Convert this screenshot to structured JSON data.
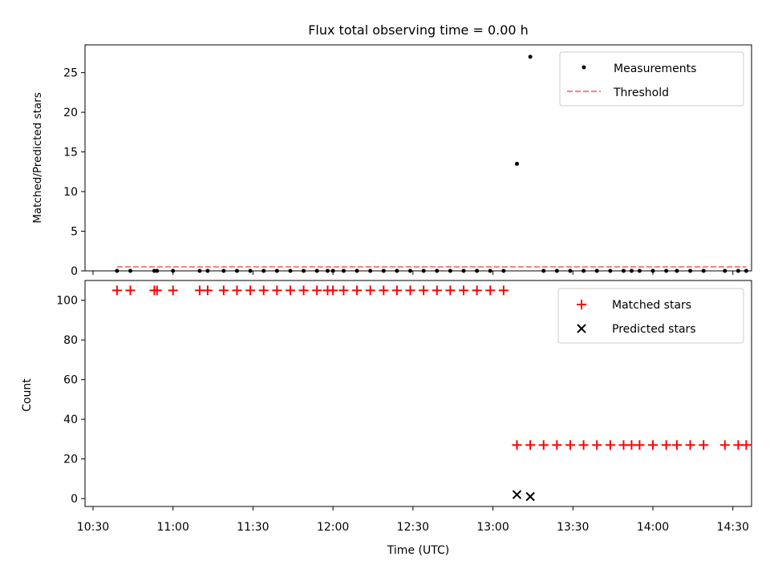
{
  "chart_data": [
    {
      "type": "scatter",
      "title": "Flux total observing time = 0.00 h",
      "ylabel": "Matched/Predicted stars",
      "xlabel": "",
      "xlim": [
        "10:27",
        "14:37"
      ],
      "ylim": [
        0,
        28.5
      ],
      "yticks": [
        0,
        5,
        10,
        15,
        20,
        25
      ],
      "grid": false,
      "legend_position": "top-right",
      "series": [
        {
          "name": "Measurements",
          "kind": "scatter",
          "marker": "dot",
          "color": "#000000",
          "points": [
            [
              "10:39",
              0
            ],
            [
              "10:44",
              0
            ],
            [
              "10:53",
              0
            ],
            [
              "10:54",
              0
            ],
            [
              "11:00",
              0
            ],
            [
              "11:10",
              0
            ],
            [
              "11:13",
              0
            ],
            [
              "11:19",
              0
            ],
            [
              "11:24",
              0
            ],
            [
              "11:29",
              0
            ],
            [
              "11:34",
              0
            ],
            [
              "11:39",
              0
            ],
            [
              "11:44",
              0
            ],
            [
              "11:49",
              0
            ],
            [
              "11:54",
              0
            ],
            [
              "11:58",
              0
            ],
            [
              "12:00",
              0
            ],
            [
              "12:04",
              0
            ],
            [
              "12:09",
              0
            ],
            [
              "12:14",
              0
            ],
            [
              "12:19",
              0
            ],
            [
              "12:24",
              0
            ],
            [
              "12:29",
              0
            ],
            [
              "12:34",
              0
            ],
            [
              "12:39",
              0
            ],
            [
              "12:44",
              0
            ],
            [
              "12:49",
              0
            ],
            [
              "12:54",
              0
            ],
            [
              "12:59",
              0
            ],
            [
              "13:04",
              0
            ],
            [
              "13:09",
              13.5
            ],
            [
              "13:14",
              27
            ],
            [
              "13:19",
              0
            ],
            [
              "13:24",
              0
            ],
            [
              "13:29",
              0
            ],
            [
              "13:34",
              0
            ],
            [
              "13:39",
              0
            ],
            [
              "13:44",
              0
            ],
            [
              "13:49",
              0
            ],
            [
              "13:52",
              0
            ],
            [
              "13:55",
              0
            ],
            [
              "14:00",
              0
            ],
            [
              "14:05",
              0
            ],
            [
              "14:09",
              0
            ],
            [
              "14:14",
              0
            ],
            [
              "14:19",
              0
            ],
            [
              "14:27",
              0
            ],
            [
              "14:32",
              0
            ],
            [
              "14:35",
              0
            ]
          ]
        },
        {
          "name": "Threshold",
          "kind": "line",
          "style": "dashed",
          "color": "#ff7f7f",
          "points": [
            [
              "10:39",
              0.5
            ],
            [
              "14:35",
              0.5
            ]
          ]
        }
      ]
    },
    {
      "type": "scatter",
      "title": "",
      "ylabel": "Count",
      "xlabel": "Time (UTC)",
      "xlim": [
        "10:27",
        "14:37"
      ],
      "ylim": [
        -4,
        110
      ],
      "yticks": [
        0,
        20,
        40,
        60,
        80,
        100
      ],
      "xticks": [
        "10:30",
        "11:00",
        "11:30",
        "12:00",
        "12:30",
        "13:00",
        "13:30",
        "14:00",
        "14:30"
      ],
      "grid": false,
      "legend_position": "top-right",
      "series": [
        {
          "name": "Matched stars",
          "kind": "scatter",
          "marker": "plus",
          "color": "#ff0000",
          "points": [
            [
              "10:39",
              105
            ],
            [
              "10:44",
              105
            ],
            [
              "10:53",
              105
            ],
            [
              "10:54",
              105
            ],
            [
              "11:00",
              105
            ],
            [
              "11:10",
              105
            ],
            [
              "11:13",
              105
            ],
            [
              "11:19",
              105
            ],
            [
              "11:24",
              105
            ],
            [
              "11:29",
              105
            ],
            [
              "11:34",
              105
            ],
            [
              "11:39",
              105
            ],
            [
              "11:44",
              105
            ],
            [
              "11:49",
              105
            ],
            [
              "11:54",
              105
            ],
            [
              "11:58",
              105
            ],
            [
              "12:00",
              105
            ],
            [
              "12:04",
              105
            ],
            [
              "12:09",
              105
            ],
            [
              "12:14",
              105
            ],
            [
              "12:19",
              105
            ],
            [
              "12:24",
              105
            ],
            [
              "12:29",
              105
            ],
            [
              "12:34",
              105
            ],
            [
              "12:39",
              105
            ],
            [
              "12:44",
              105
            ],
            [
              "12:49",
              105
            ],
            [
              "12:54",
              105
            ],
            [
              "12:59",
              105
            ],
            [
              "13:04",
              105
            ],
            [
              "13:09",
              27
            ],
            [
              "13:14",
              27
            ],
            [
              "13:19",
              27
            ],
            [
              "13:24",
              27
            ],
            [
              "13:29",
              27
            ],
            [
              "13:34",
              27
            ],
            [
              "13:39",
              27
            ],
            [
              "13:44",
              27
            ],
            [
              "13:49",
              27
            ],
            [
              "13:52",
              27
            ],
            [
              "13:55",
              27
            ],
            [
              "14:00",
              27
            ],
            [
              "14:05",
              27
            ],
            [
              "14:09",
              27
            ],
            [
              "14:14",
              27
            ],
            [
              "14:19",
              27
            ],
            [
              "14:27",
              27
            ],
            [
              "14:32",
              27
            ],
            [
              "14:35",
              27
            ]
          ]
        },
        {
          "name": "Predicted stars",
          "kind": "scatter",
          "marker": "x",
          "color": "#000000",
          "points": [
            [
              "13:09",
              2
            ],
            [
              "13:14",
              1
            ]
          ]
        }
      ]
    }
  ]
}
